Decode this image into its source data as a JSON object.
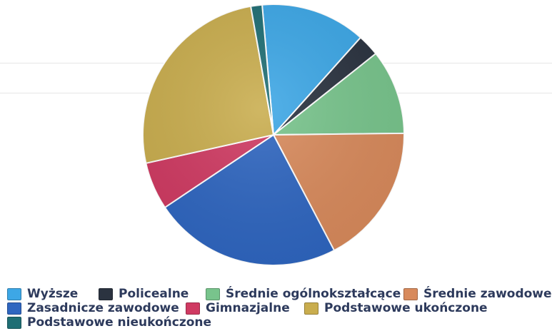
{
  "chart_data": {
    "type": "pie",
    "title": "",
    "start_angle_deg": -5,
    "direction": "clockwise",
    "slices": [
      {
        "label": "Wyższe",
        "value": 13.0,
        "color": "#3da7e6"
      },
      {
        "label": "Policealne",
        "value": 2.7,
        "color": "#2b3340"
      },
      {
        "label": "Średnie ogólnokształcące",
        "value": 10.5,
        "color": "#78c48c"
      },
      {
        "label": "Średnie zawodowe",
        "value": 17.5,
        "color": "#d88a5c"
      },
      {
        "label": "Zasadnicze zawodowe",
        "value": 23.3,
        "color": "#2f66c0"
      },
      {
        "label": "Gimnazjalne",
        "value": 5.9,
        "color": "#cf3a62"
      },
      {
        "label": "Podstawowe ukończone",
        "value": 25.7,
        "color": "#c9ad4e"
      },
      {
        "label": "Podstawowe nieukończone",
        "value": 1.4,
        "color": "#1f6e74"
      }
    ],
    "legend": {
      "placement": "bottom",
      "entries": [
        "Wyższe",
        "Policealne",
        "Średnie ogólnokształcące",
        "Średnie zawodowe",
        "Zasadnicze zawodowe",
        "Gimnazjalne",
        "Podstawowe ukończone",
        "Podstawowe nieukończone"
      ]
    }
  }
}
